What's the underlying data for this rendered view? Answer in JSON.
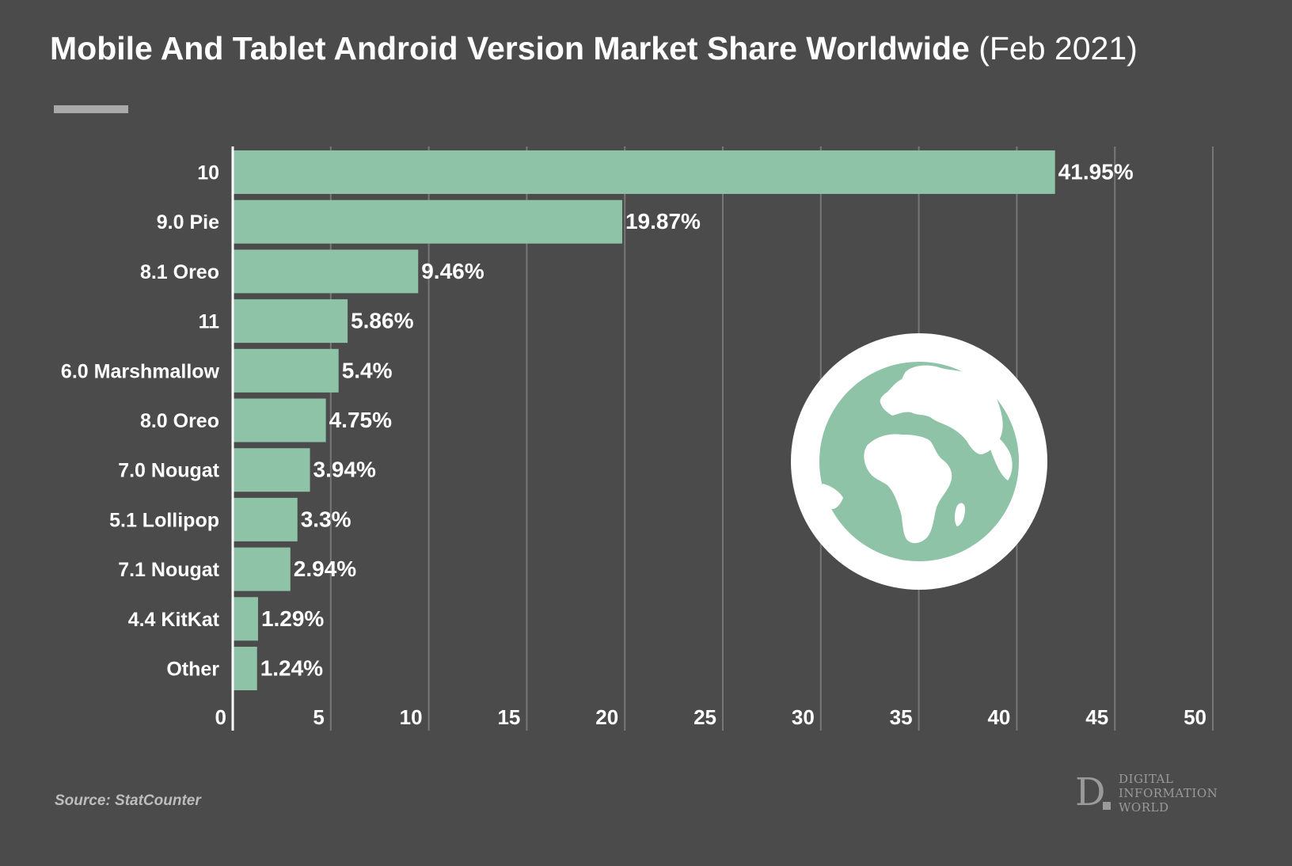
{
  "title": {
    "main": "Mobile And Tablet Android Version Market Share Worldwide",
    "sub": "(Feb 2021)"
  },
  "source": "Source: StatCounter",
  "logo": {
    "letter": "D",
    "lines": [
      "DIGITAL",
      "INFORMATION",
      "WORLD"
    ]
  },
  "colors": {
    "background": "#4b4b4b",
    "bar": "#8fc3a8",
    "grid": "#777777",
    "axis": "#ffffff",
    "globe_ring": "#ffffff",
    "globe_sea": "#8fc3a8",
    "globe_land": "#ffffff"
  },
  "icon": "globe-icon",
  "chart_data": {
    "type": "bar",
    "orientation": "horizontal",
    "categories": [
      "10",
      "9.0 Pie",
      "8.1 Oreo",
      "11",
      "6.0 Marshmallow",
      "8.0 Oreo",
      "7.0 Nougat",
      "5.1 Lollipop",
      "7.1 Nougat",
      "4.4 KitKat",
      "Other"
    ],
    "values": [
      41.95,
      19.87,
      9.46,
      5.86,
      5.4,
      4.75,
      3.94,
      3.3,
      2.94,
      1.29,
      1.24
    ],
    "value_labels": [
      "41.95%",
      "19.87%",
      "9.46%",
      "5.86%",
      "5.4%",
      "4.75%",
      "3.94%",
      "3.3%",
      "2.94%",
      "1.29%",
      "1.24%"
    ],
    "xlim": [
      0,
      50
    ],
    "xticks": [
      "0",
      "5",
      "10",
      "15",
      "20",
      "25",
      "30",
      "35",
      "40",
      "45",
      "50"
    ],
    "grid": true
  }
}
